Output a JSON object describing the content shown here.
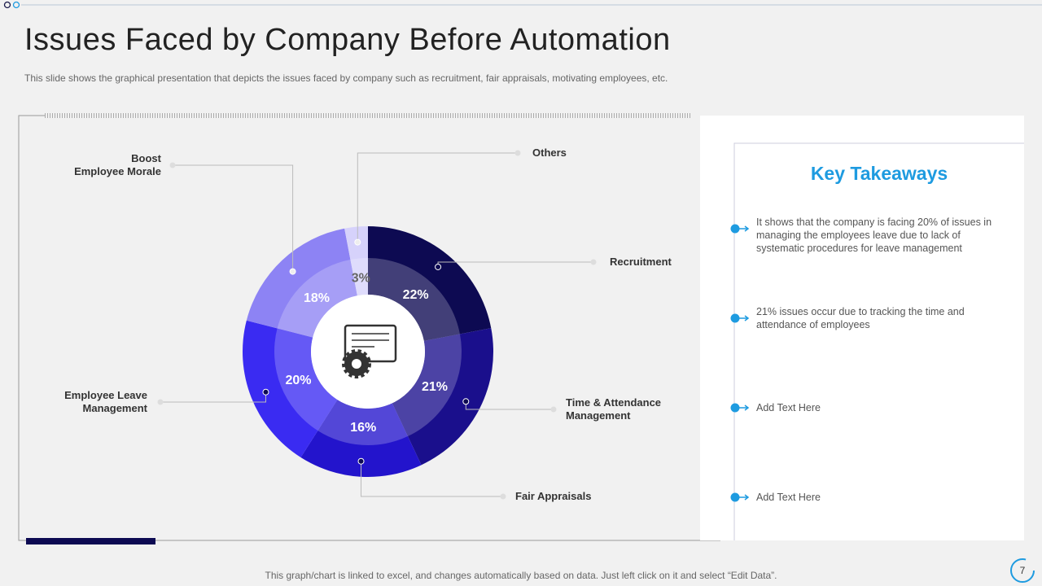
{
  "chart_data": {
    "type": "pie",
    "title": "Issues Faced by Company Before Automation",
    "subtitle": "This slide shows the graphical presentation that depicts the issues faced by company such as recruitment, fair appraisals, motivating employees, etc.",
    "categories": [
      "Recruitment",
      "Time & Attendance\nManagement",
      "Fair Appraisals",
      "Employee Leave\nManagement",
      "Boost\nEmployee Morale",
      "Others"
    ],
    "values": [
      22,
      21,
      16,
      20,
      18,
      3
    ],
    "value_labels": [
      "22%",
      "21%",
      "16%",
      "20%",
      "18%",
      "3%"
    ],
    "colors": [
      "#0d0a52",
      "#1a0f8c",
      "#2314cc",
      "#3a2bf2",
      "#8d83f4",
      "#d6d2fb"
    ]
  },
  "takeaways": {
    "title": "Key Takeaways",
    "items": [
      "It shows that the company is facing 20% of issues in managing the employees leave due to lack of systematic procedures for leave management",
      "21% issues occur due to tracking the time and attendance of employees",
      "Add Text Here",
      "Add Text Here"
    ]
  },
  "footer": "This graph/chart is linked to excel,  and changes automatically based on data. Just left click on it and select “Edit Data”.",
  "page_number": "7"
}
